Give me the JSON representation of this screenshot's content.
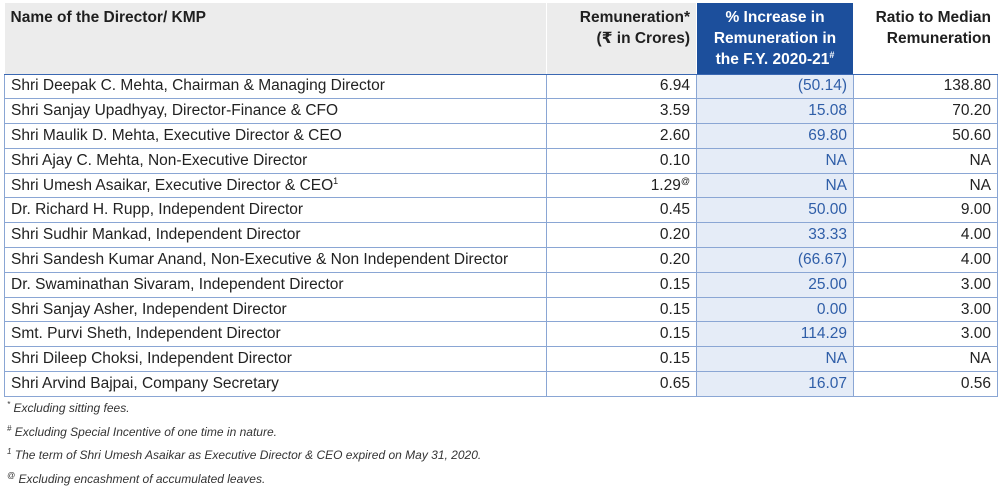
{
  "table": {
    "headers": {
      "name": "Name of the Director/ KMP",
      "remuneration_line1": "Remuneration*",
      "remuneration_line2": "(₹ in Crores)",
      "increase_line1": "% Increase in",
      "increase_line2": "Remuneration in",
      "increase_line3": "the F.Y. 2020-21",
      "increase_mark": "#",
      "ratio_line1": "Ratio to Median",
      "ratio_line2": "Remuneration"
    },
    "rows": [
      {
        "name": "Shri Deepak C. Mehta, Chairman & Managing Director",
        "name_mark": "",
        "remuneration": "6.94",
        "rem_mark": "",
        "increase": "(50.14)",
        "ratio": "138.80"
      },
      {
        "name": "Shri Sanjay Upadhyay, Director-Finance & CFO",
        "name_mark": "",
        "remuneration": "3.59",
        "rem_mark": "",
        "increase": "15.08",
        "ratio": "70.20"
      },
      {
        "name": "Shri Maulik D. Mehta, Executive Director & CEO",
        "name_mark": "",
        "remuneration": "2.60",
        "rem_mark": "",
        "increase": "69.80",
        "ratio": "50.60"
      },
      {
        "name": "Shri Ajay C. Mehta, Non-Executive Director",
        "name_mark": "",
        "remuneration": "0.10",
        "rem_mark": "",
        "increase": "NA",
        "ratio": "NA"
      },
      {
        "name": "Shri Umesh Asaikar, Executive Director & CEO",
        "name_mark": "1",
        "remuneration": "1.29",
        "rem_mark": "@",
        "increase": "NA",
        "ratio": "NA"
      },
      {
        "name": "Dr. Richard H. Rupp, Independent Director",
        "name_mark": "",
        "remuneration": "0.45",
        "rem_mark": "",
        "increase": "50.00",
        "ratio": "9.00"
      },
      {
        "name": "Shri Sudhir Mankad, Independent Director",
        "name_mark": "",
        "remuneration": "0.20",
        "rem_mark": "",
        "increase": "33.33",
        "ratio": "4.00"
      },
      {
        "name": "Shri Sandesh Kumar Anand, Non-Executive & Non Independent Director",
        "name_mark": "",
        "remuneration": "0.20",
        "rem_mark": "",
        "increase": "(66.67)",
        "ratio": "4.00"
      },
      {
        "name": "Dr. Swaminathan Sivaram, Independent Director",
        "name_mark": "",
        "remuneration": "0.15",
        "rem_mark": "",
        "increase": "25.00",
        "ratio": "3.00"
      },
      {
        "name": "Shri Sanjay Asher, Independent Director",
        "name_mark": "",
        "remuneration": "0.15",
        "rem_mark": "",
        "increase": "0.00",
        "ratio": "3.00"
      },
      {
        "name": "Smt. Purvi Sheth, Independent Director",
        "name_mark": "",
        "remuneration": "0.15",
        "rem_mark": "",
        "increase": "114.29",
        "ratio": "3.00"
      },
      {
        "name": "Shri Dileep Choksi, Independent Director",
        "name_mark": "",
        "remuneration": "0.15",
        "rem_mark": "",
        "increase": "NA",
        "ratio": "NA"
      },
      {
        "name": "Shri Arvind Bajpai, Company Secretary",
        "name_mark": "",
        "remuneration": "0.65",
        "rem_mark": "",
        "increase": "16.07",
        "ratio": "0.56"
      }
    ]
  },
  "footnotes": [
    {
      "mark": "*",
      "text": "Excluding sitting fees."
    },
    {
      "mark": "#",
      "text": "Excluding Special Incentive of one time in nature."
    },
    {
      "mark": "1",
      "text": "The term of Shri Umesh Asaikar as Executive Director & CEO expired on May 31, 2020."
    },
    {
      "mark": "@",
      "text": "Excluding encashment of accumulated leaves."
    }
  ],
  "colors": {
    "header_highlight_bg": "#1c4f9c",
    "header_bg": "#ececec",
    "increase_cell_bg": "#e5ecf7",
    "increase_text": "#2f5ea8",
    "grid_line": "#8aa6d4"
  }
}
